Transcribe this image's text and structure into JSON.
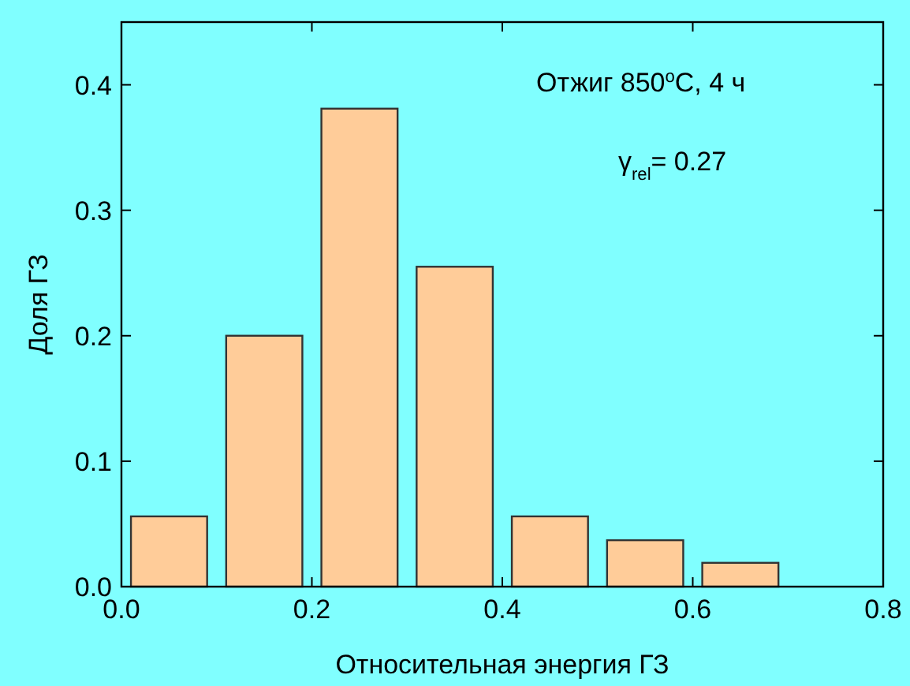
{
  "chart_data": {
    "type": "bar",
    "xlabel": "Относительная энергия ГЗ",
    "ylabel": "Доля ГЗ",
    "x": [
      0.05,
      0.15,
      0.25,
      0.35,
      0.45,
      0.55,
      0.65
    ],
    "values": [
      0.056,
      0.2,
      0.381,
      0.255,
      0.056,
      0.037,
      0.019
    ],
    "color": "#ffcc99",
    "xlim": [
      0,
      0.8
    ],
    "xticks": [
      {
        "value": 0,
        "label": "0.0"
      },
      0.2,
      0.4,
      0.6,
      0.8
    ],
    "ylim": [
      0,
      0.45
    ],
    "yticks": [
      {
        "value": 0,
        "label": "0.0"
      },
      0.1,
      0.2,
      0.3,
      0.4
    ],
    "annotations": [
      "Отжиг 850$^{o}$C, 4 ч",
      "γ$_{rel}$= 0.27"
    ]
  }
}
